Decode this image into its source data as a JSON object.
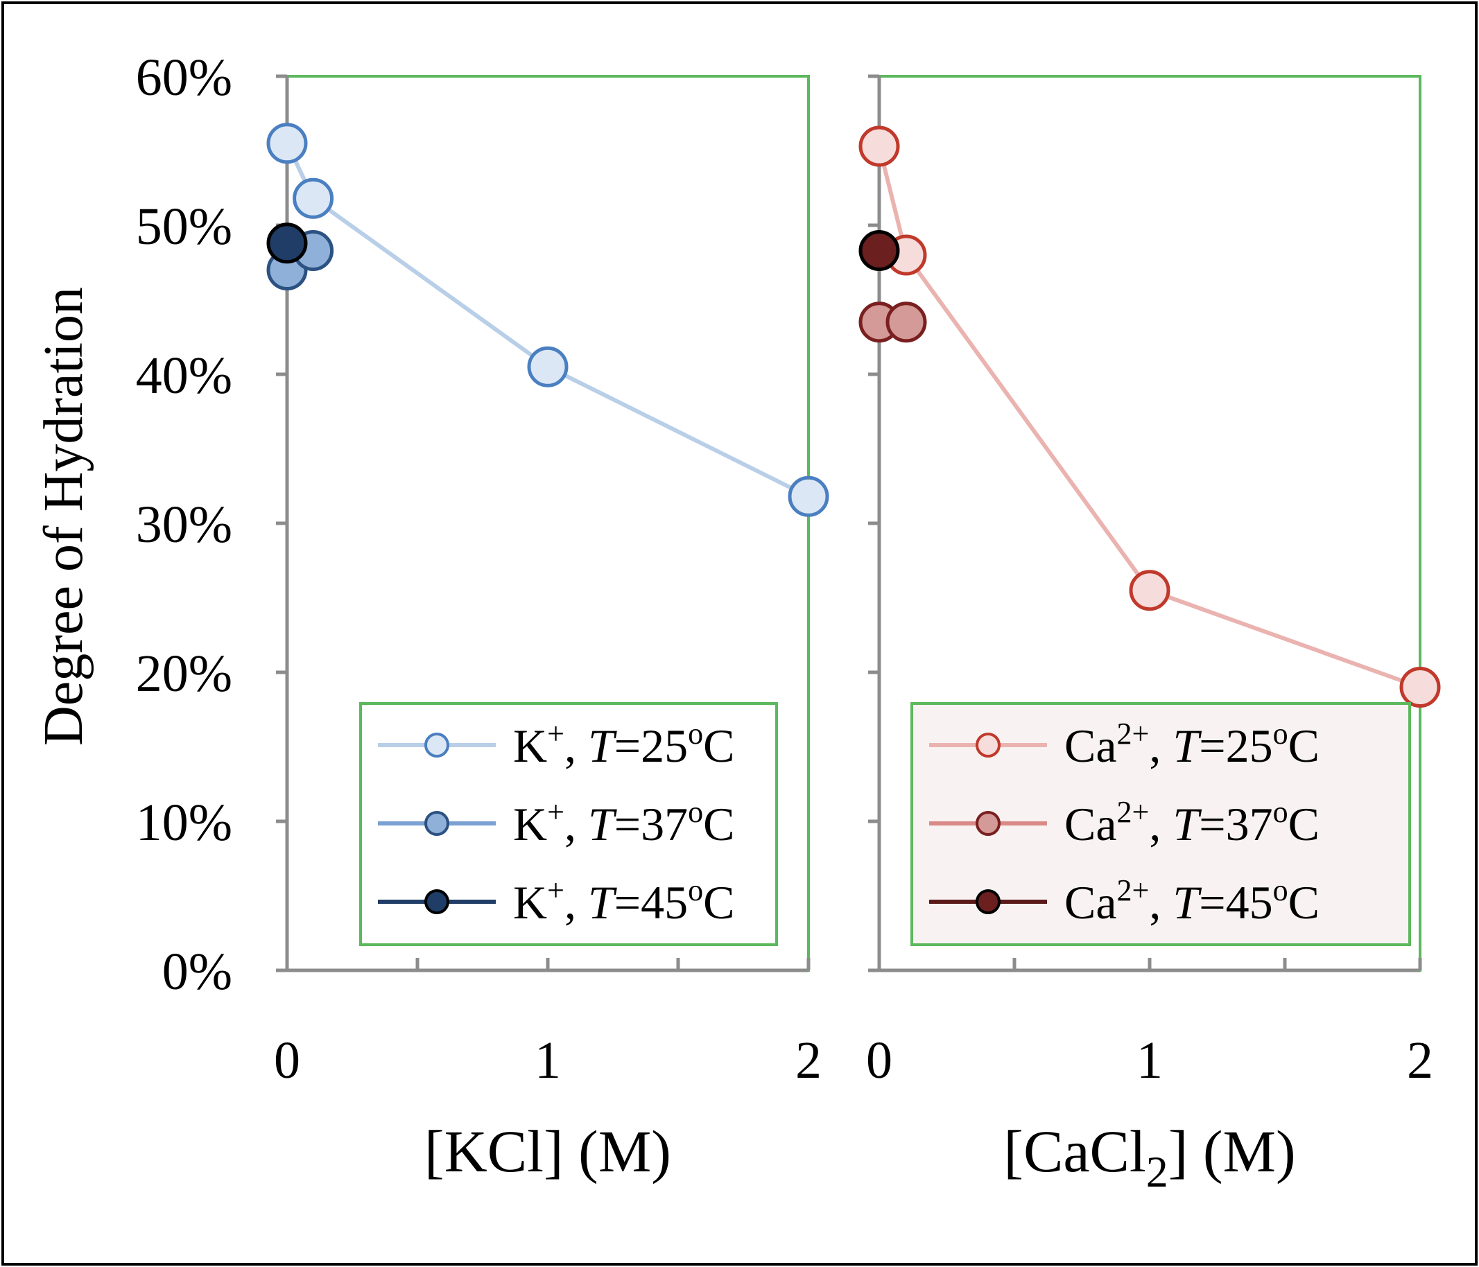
{
  "figure": {
    "ylabel": "Degree of Hydration",
    "ytick_labels": [
      "0%",
      "10%",
      "20%",
      "30%",
      "40%",
      "50%",
      "60%"
    ]
  },
  "chart_data": [
    {
      "type": "line",
      "xlabel": "[KCl] (M)",
      "xlabel_parts": {
        "main": "[KCl] (M)",
        "subscript": ""
      },
      "ylabel": "Degree of Hydration",
      "xlim": [
        0,
        2
      ],
      "ylim": [
        0,
        0.6
      ],
      "xticks": [
        0,
        1,
        2
      ],
      "xtick_labels": [
        "0",
        "1",
        "2"
      ],
      "minor_xticks": [
        0.5,
        1.5
      ],
      "yticks": [
        0,
        0.1,
        0.2,
        0.3,
        0.4,
        0.5,
        0.6
      ],
      "legend_position": "bottom-right",
      "series": [
        {
          "name": "K+, T=25oC",
          "ion": "K",
          "charge": "+",
          "temp": "25",
          "line": "#b9cfe8",
          "fill": "#dce7f5",
          "stroke": "#4a7fc1",
          "x": [
            0,
            0.1,
            1,
            2
          ],
          "y": [
            0.555,
            0.518,
            0.405,
            0.318
          ]
        },
        {
          "name": "K+, T=37oC",
          "ion": "K",
          "charge": "+",
          "temp": "37",
          "line": "#7aa1d2",
          "fill": "#8fb0d9",
          "stroke": "#2c5282",
          "x": [
            0,
            0.1
          ],
          "y": [
            0.47,
            0.483
          ]
        },
        {
          "name": "K+, T=45oC",
          "ion": "K",
          "charge": "+",
          "temp": "45",
          "line": "#1f3d66",
          "fill": "#1f3d66",
          "stroke": "#000000",
          "x": [
            0
          ],
          "y": [
            0.488
          ]
        }
      ]
    },
    {
      "type": "line",
      "xlabel": "[CaCl2] (M)",
      "xlabel_parts": {
        "main": "[CaCl",
        "subscript": "2",
        "tail": "] (M)"
      },
      "xlim": [
        0,
        2
      ],
      "ylim": [
        0,
        0.6
      ],
      "xticks": [
        0,
        1,
        2
      ],
      "xtick_labels": [
        "0",
        "1",
        "2"
      ],
      "minor_xticks": [
        0.5,
        1.5
      ],
      "yticks": [
        0,
        0.1,
        0.2,
        0.3,
        0.4,
        0.5,
        0.6
      ],
      "legend_position": "bottom-right",
      "series": [
        {
          "name": "Ca2+, T=25oC",
          "ion": "Ca",
          "charge": "2+",
          "temp": "25",
          "line": "#eab3b0",
          "fill": "#f6dcda",
          "stroke": "#c0392b",
          "x": [
            0,
            0.1,
            1,
            2
          ],
          "y": [
            0.553,
            0.48,
            0.255,
            0.19
          ]
        },
        {
          "name": "Ca2+, T=37oC",
          "ion": "Ca",
          "charge": "2+",
          "temp": "37",
          "line": "#d98a86",
          "fill": "#d39a97",
          "stroke": "#7a1f1f",
          "x": [
            0,
            0.1
          ],
          "y": [
            0.435,
            0.435
          ]
        },
        {
          "name": "Ca2+, T=45oC",
          "ion": "Ca",
          "charge": "2+",
          "temp": "45",
          "line": "#5a1a1a",
          "fill": "#6b1f1f",
          "stroke": "#000000",
          "x": [
            0
          ],
          "y": [
            0.483
          ]
        }
      ]
    }
  ]
}
